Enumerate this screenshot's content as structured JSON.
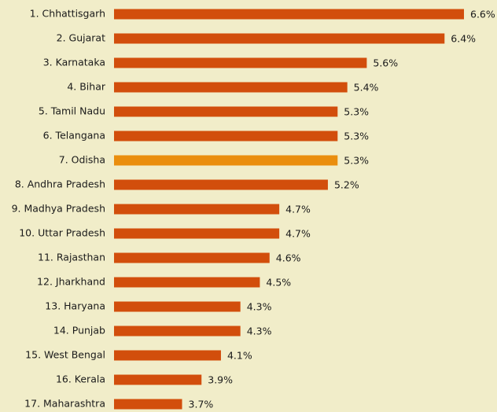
{
  "chart_data": {
    "type": "bar",
    "orientation": "horizontal",
    "categories": [
      "1. Chhattisgarh",
      "2. Gujarat",
      "3. Karnataka",
      "4. Bihar",
      "5. Tamil Nadu",
      "6. Telangana",
      "7. Odisha",
      "8. Andhra Pradesh",
      "9. Madhya Pradesh",
      "10. Uttar Pradesh",
      "11. Rajasthan",
      "12. Jharkhand",
      "13. Haryana",
      "14. Punjab",
      "15. West Bengal",
      "16. Kerala",
      "17. Maharashtra"
    ],
    "values": [
      6.6,
      6.4,
      5.6,
      5.4,
      5.3,
      5.3,
      5.3,
      5.2,
      4.7,
      4.7,
      4.6,
      4.5,
      4.3,
      4.3,
      4.1,
      3.9,
      3.7
    ],
    "value_labels": [
      "6.6%",
      "6.4%",
      "5.6%",
      "5.4%",
      "5.3%",
      "5.3%",
      "5.3%",
      "5.2%",
      "4.7%",
      "4.7%",
      "4.6%",
      "4.5%",
      "4.3%",
      "4.3%",
      "4.1%",
      "3.9%",
      "3.7%"
    ],
    "colors": [
      "#d24e0c",
      "#d24e0c",
      "#d24e0c",
      "#d24e0c",
      "#d24e0c",
      "#d24e0c",
      "#ea8e0e",
      "#d24e0c",
      "#d24e0c",
      "#d24e0c",
      "#d24e0c",
      "#d24e0c",
      "#d24e0c",
      "#d24e0c",
      "#d24e0c",
      "#d24e0c",
      "#d24e0c"
    ],
    "xlim": [
      3,
      6.6
    ]
  }
}
